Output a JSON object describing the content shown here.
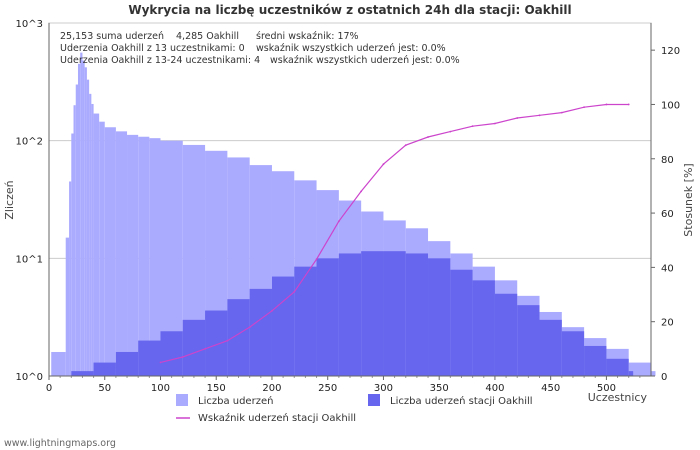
{
  "chart_data": {
    "type": "bar",
    "title": "Wykrycia na liczbę uczestników z ostatnich 24h dla stacji: Oakhill",
    "xlabel": "Uczestnicy",
    "ylabel_left": "Zliczeń",
    "ylabel_right": "Stosunek [%]",
    "xlim": [
      0,
      540
    ],
    "x_ticks": [
      "0",
      "50",
      "100",
      "150",
      "200",
      "250",
      "300",
      "350",
      "400",
      "450",
      "500"
    ],
    "y_left_scale": "log10",
    "ylim_left": [
      1,
      1000
    ],
    "y_left_ticks": [
      "10^0",
      "10^1",
      "10^2",
      "10^3"
    ],
    "ylim_right": [
      0,
      130
    ],
    "y_right_ticks": [
      "0",
      "20",
      "40",
      "60",
      "80",
      "100",
      "120"
    ],
    "grid": true,
    "stats": [
      [
        "25,153 suma uderzeń",
        "4,285 Oakhill",
        "średni wskaźnik: 17%"
      ],
      [
        "Uderzenia Oakhill z 13 uczestnikami: 0",
        "wskaźnik wszystkich uderzeń jest: 0.0%"
      ],
      [
        "Uderzenia Oakhill z 13-24 uczestnikami: 4",
        "wskaźnik wszystkich uderzeń jest: 0.0%"
      ]
    ],
    "series": [
      {
        "name": "Liczba uderzeń",
        "kind": "bar",
        "color": "#aaaaff",
        "points": [
          [
            2,
            1.6
          ],
          [
            15,
            15
          ],
          [
            18,
            45
          ],
          [
            20,
            115
          ],
          [
            22,
            200
          ],
          [
            24,
            300
          ],
          [
            26,
            450
          ],
          [
            28,
            560
          ],
          [
            30,
            480
          ],
          [
            32,
            420
          ],
          [
            34,
            330
          ],
          [
            36,
            250
          ],
          [
            38,
            205
          ],
          [
            40,
            170
          ],
          [
            45,
            145
          ],
          [
            50,
            130
          ],
          [
            60,
            120
          ],
          [
            70,
            112
          ],
          [
            80,
            108
          ],
          [
            90,
            105
          ],
          [
            100,
            100
          ],
          [
            120,
            92
          ],
          [
            140,
            82
          ],
          [
            160,
            72
          ],
          [
            180,
            62
          ],
          [
            200,
            55
          ],
          [
            220,
            46
          ],
          [
            240,
            38
          ],
          [
            260,
            31
          ],
          [
            280,
            25
          ],
          [
            300,
            21
          ],
          [
            320,
            18
          ],
          [
            340,
            14
          ],
          [
            360,
            11
          ],
          [
            380,
            8.5
          ],
          [
            400,
            6.5
          ],
          [
            420,
            4.8
          ],
          [
            440,
            3.5
          ],
          [
            460,
            2.6
          ],
          [
            480,
            2.1
          ],
          [
            500,
            1.7
          ],
          [
            520,
            1.3
          ],
          [
            540,
            1.1
          ]
        ]
      },
      {
        "name": "Liczba uderzeń stacji Oakhill",
        "kind": "bar",
        "color": "#6666ee",
        "points": [
          [
            20,
            1.1
          ],
          [
            40,
            1.3
          ],
          [
            60,
            1.6
          ],
          [
            80,
            2.0
          ],
          [
            100,
            2.4
          ],
          [
            120,
            3.0
          ],
          [
            140,
            3.6
          ],
          [
            160,
            4.5
          ],
          [
            180,
            5.5
          ],
          [
            200,
            7.0
          ],
          [
            220,
            8.5
          ],
          [
            240,
            10
          ],
          [
            260,
            11
          ],
          [
            280,
            11.5
          ],
          [
            300,
            11.5
          ],
          [
            320,
            11
          ],
          [
            340,
            10
          ],
          [
            360,
            8
          ],
          [
            380,
            6.5
          ],
          [
            400,
            5
          ],
          [
            420,
            4
          ],
          [
            440,
            3
          ],
          [
            460,
            2.4
          ],
          [
            480,
            1.8
          ],
          [
            500,
            1.4
          ],
          [
            520,
            1.1
          ]
        ]
      },
      {
        "name": "Wskaźnik uderzeń stacji Oakhill",
        "kind": "line",
        "color": "#cc44cc",
        "points": [
          [
            100,
            5
          ],
          [
            120,
            7
          ],
          [
            140,
            10
          ],
          [
            160,
            13
          ],
          [
            180,
            18
          ],
          [
            200,
            24
          ],
          [
            220,
            31
          ],
          [
            240,
            43
          ],
          [
            260,
            57
          ],
          [
            280,
            68
          ],
          [
            300,
            78
          ],
          [
            320,
            85
          ],
          [
            340,
            88
          ],
          [
            360,
            90
          ],
          [
            380,
            92
          ],
          [
            400,
            93
          ],
          [
            420,
            95
          ],
          [
            440,
            96
          ],
          [
            460,
            97
          ],
          [
            480,
            99
          ],
          [
            500,
            100
          ],
          [
            520,
            100
          ]
        ]
      }
    ]
  },
  "legend": {
    "item1": "Liczba uderzeń",
    "item2": "Liczba uderzeń stacji Oakhill",
    "item3": "Wskaźnik uderzeń stacji Oakhill"
  },
  "footer": {
    "credit": "www.lightningmaps.org"
  }
}
